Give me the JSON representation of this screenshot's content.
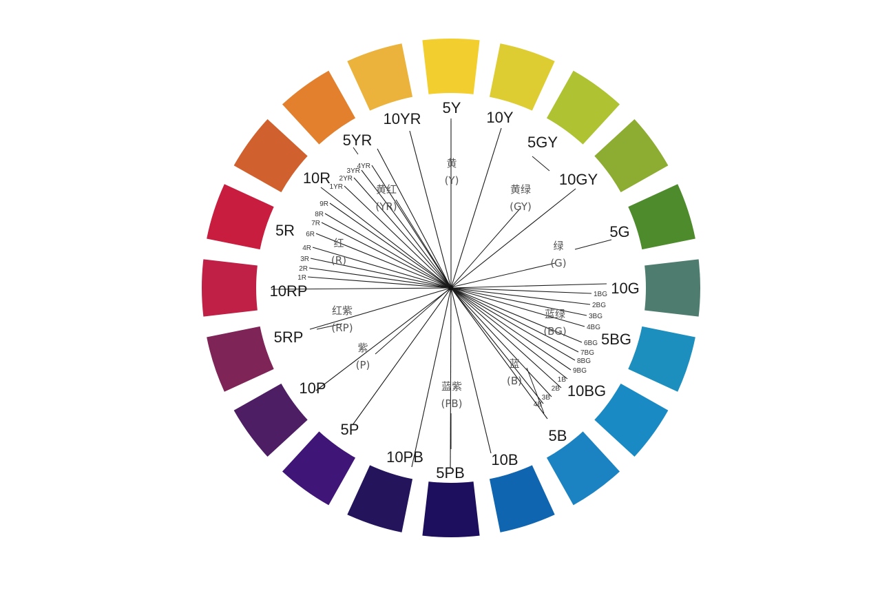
{
  "diagram": {
    "segments": [
      {
        "hue": "5Y",
        "color": "#F2CF2E"
      },
      {
        "hue": "10Y",
        "color": "#DDCD33"
      },
      {
        "hue": "5GY",
        "color": "#AEC232"
      },
      {
        "hue": "10GY",
        "color": "#8DAD32"
      },
      {
        "hue": "5G",
        "color": "#4E8B2C"
      },
      {
        "hue": "10G",
        "color": "#4E7D70"
      },
      {
        "hue": "5BG",
        "color": "#1C8FBF"
      },
      {
        "hue": "10BG",
        "color": "#198AC4"
      },
      {
        "hue": "5B",
        "color": "#1B83C2"
      },
      {
        "hue": "10B",
        "color": "#0F65B0"
      },
      {
        "hue": "5PB",
        "color": "#1E0E5E"
      },
      {
        "hue": "10PB",
        "color": "#23145C"
      },
      {
        "hue": "5P",
        "color": "#3F1577"
      },
      {
        "hue": "10P",
        "color": "#4D1E63"
      },
      {
        "hue": "5RP",
        "color": "#7F2457"
      },
      {
        "hue": "10RP",
        "color": "#C01F46"
      },
      {
        "hue": "5R",
        "color": "#C81D3F"
      },
      {
        "hue": "10R",
        "color": "#D0612E"
      },
      {
        "hue": "5YR",
        "color": "#E2802E"
      },
      {
        "hue": "10YR",
        "color": "#EBB33C"
      }
    ],
    "families": [
      {
        "name": "黄",
        "code": "(Y)"
      },
      {
        "name": "黄绿",
        "code": "(GY)"
      },
      {
        "name": "绿",
        "code": "(G)"
      },
      {
        "name": "蓝绿",
        "code": "(BG)"
      },
      {
        "name": "蓝",
        "code": "(B)"
      },
      {
        "name": "蓝紫",
        "code": "(PB)"
      },
      {
        "name": "紫",
        "code": "(P)"
      },
      {
        "name": "红紫",
        "code": "(RP)"
      },
      {
        "name": "红",
        "code": "(R)"
      },
      {
        "name": "黄红",
        "code": "(YR)"
      }
    ],
    "minor_labels": [
      "4YR",
      "3YR",
      "2YR",
      "1YR",
      "9R",
      "8R",
      "7R",
      "6R",
      "4R",
      "3R",
      "2R",
      "1R",
      "1BG",
      "2BG",
      "3BG",
      "4BG",
      "6BG",
      "7BG",
      "8BG",
      "9BG",
      "1B",
      "2B",
      "3B",
      "4B"
    ]
  }
}
